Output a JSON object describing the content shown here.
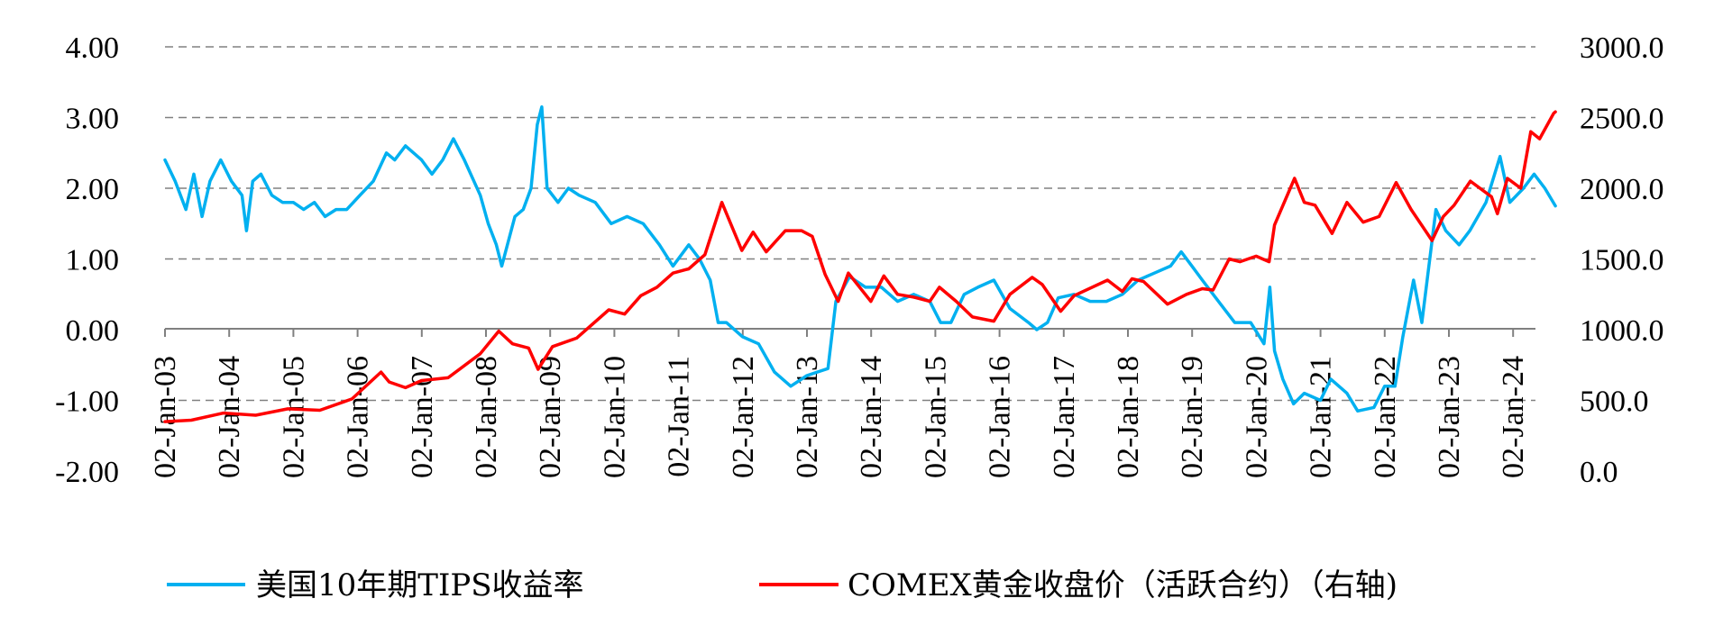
{
  "chart_data": {
    "type": "line",
    "grid": "dashed horizontal",
    "legend_position": "bottom",
    "x_tick_labels": [
      "02-Jan-03",
      "02-Jan-04",
      "02-Jan-05",
      "02-Jan-06",
      "02-Jan-07",
      "02-Jan-08",
      "02-Jan-09",
      "02-Jan-10",
      "02-Jan-11",
      "02-Jan-12",
      "02-Jan-13",
      "02-Jan-14",
      "02-Jan-15",
      "02-Jan-16",
      "02-Jan-17",
      "02-Jan-18",
      "02-Jan-19",
      "02-Jan-20",
      "02-Jan-21",
      "02-Jan-22",
      "02-Jan-23",
      "02-Jan-24"
    ],
    "x_range": [
      "2003-01-02",
      "2024-08-30"
    ],
    "y_left": {
      "ylim": [
        -2.0,
        4.0
      ],
      "tick_labels": [
        "4.00",
        "3.00",
        "2.00",
        "1.00",
        "0.00",
        "-1.00",
        "-2.00"
      ]
    },
    "y_right": {
      "ylim": [
        0,
        3000
      ],
      "tick_labels": [
        "3000.0",
        "2500.0",
        "2000.0",
        "1500.0",
        "1000.0",
        "500.0",
        "0.0"
      ]
    },
    "series": [
      {
        "name": "美国10年期TIPS收益率",
        "axis": "left",
        "color": "#00B0F0",
        "points": [
          [
            "2003-01-02",
            2.4
          ],
          [
            "2003-03-01",
            2.1
          ],
          [
            "2003-05-01",
            1.7
          ],
          [
            "2003-06-15",
            2.2
          ],
          [
            "2003-08-01",
            1.6
          ],
          [
            "2003-09-15",
            2.1
          ],
          [
            "2003-11-15",
            2.4
          ],
          [
            "2004-01-15",
            2.1
          ],
          [
            "2004-03-15",
            1.9
          ],
          [
            "2004-04-10",
            1.4
          ],
          [
            "2004-05-15",
            2.1
          ],
          [
            "2004-07-01",
            2.2
          ],
          [
            "2004-09-01",
            1.9
          ],
          [
            "2004-11-01",
            1.8
          ],
          [
            "2005-01-01",
            1.8
          ],
          [
            "2005-03-01",
            1.7
          ],
          [
            "2005-05-01",
            1.8
          ],
          [
            "2005-07-01",
            1.6
          ],
          [
            "2005-09-01",
            1.7
          ],
          [
            "2005-11-01",
            1.7
          ],
          [
            "2006-01-15",
            1.9
          ],
          [
            "2006-04-01",
            2.1
          ],
          [
            "2006-06-15",
            2.5
          ],
          [
            "2006-08-01",
            2.4
          ],
          [
            "2006-10-01",
            2.6
          ],
          [
            "2007-01-01",
            2.4
          ],
          [
            "2007-03-01",
            2.2
          ],
          [
            "2007-05-01",
            2.4
          ],
          [
            "2007-07-01",
            2.7
          ],
          [
            "2007-09-01",
            2.4
          ],
          [
            "2007-12-01",
            1.9
          ],
          [
            "2008-01-15",
            1.5
          ],
          [
            "2008-03-01",
            1.2
          ],
          [
            "2008-04-01",
            0.9
          ],
          [
            "2008-06-15",
            1.6
          ],
          [
            "2008-08-01",
            1.7
          ],
          [
            "2008-09-15",
            2.0
          ],
          [
            "2008-10-20",
            2.9
          ],
          [
            "2008-11-15",
            3.15
          ],
          [
            "2008-12-15",
            2.0
          ],
          [
            "2009-02-15",
            1.8
          ],
          [
            "2009-04-15",
            2.0
          ],
          [
            "2009-06-15",
            1.9
          ],
          [
            "2009-09-15",
            1.8
          ],
          [
            "2009-12-15",
            1.5
          ],
          [
            "2010-03-15",
            1.6
          ],
          [
            "2010-06-15",
            1.5
          ],
          [
            "2010-09-15",
            1.2
          ],
          [
            "2010-12-01",
            0.9
          ],
          [
            "2011-03-01",
            1.2
          ],
          [
            "2011-05-01",
            1.0
          ],
          [
            "2011-07-01",
            0.7
          ],
          [
            "2011-08-15",
            0.1
          ],
          [
            "2011-10-01",
            0.1
          ],
          [
            "2012-01-01",
            -0.1
          ],
          [
            "2012-04-01",
            -0.2
          ],
          [
            "2012-07-01",
            -0.6
          ],
          [
            "2012-10-01",
            -0.8
          ],
          [
            "2013-01-01",
            -0.65
          ],
          [
            "2013-03-01",
            -0.6
          ],
          [
            "2013-05-01",
            -0.55
          ],
          [
            "2013-06-15",
            0.4
          ],
          [
            "2013-09-01",
            0.75
          ],
          [
            "2013-12-01",
            0.6
          ],
          [
            "2014-03-01",
            0.6
          ],
          [
            "2014-06-01",
            0.4
          ],
          [
            "2014-09-01",
            0.5
          ],
          [
            "2014-12-01",
            0.4
          ],
          [
            "2015-02-01",
            0.1
          ],
          [
            "2015-04-01",
            0.1
          ],
          [
            "2015-06-15",
            0.5
          ],
          [
            "2015-09-01",
            0.6
          ],
          [
            "2015-12-01",
            0.7
          ],
          [
            "2016-03-01",
            0.3
          ],
          [
            "2016-06-15",
            0.1
          ],
          [
            "2016-08-01",
            0.0
          ],
          [
            "2016-10-01",
            0.1
          ],
          [
            "2016-12-01",
            0.45
          ],
          [
            "2017-03-01",
            0.5
          ],
          [
            "2017-06-01",
            0.4
          ],
          [
            "2017-09-01",
            0.4
          ],
          [
            "2017-12-01",
            0.5
          ],
          [
            "2018-03-01",
            0.7
          ],
          [
            "2018-06-01",
            0.8
          ],
          [
            "2018-09-01",
            0.9
          ],
          [
            "2018-11-01",
            1.1
          ],
          [
            "2019-01-01",
            0.9
          ],
          [
            "2019-03-01",
            0.7
          ],
          [
            "2019-06-01",
            0.4
          ],
          [
            "2019-09-01",
            0.1
          ],
          [
            "2019-12-01",
            0.1
          ],
          [
            "2020-02-15",
            -0.2
          ],
          [
            "2020-03-19",
            0.6
          ],
          [
            "2020-04-15",
            -0.3
          ],
          [
            "2020-06-01",
            -0.7
          ],
          [
            "2020-08-01",
            -1.05
          ],
          [
            "2020-10-01",
            -0.9
          ],
          [
            "2021-01-01",
            -1.0
          ],
          [
            "2021-03-01",
            -0.7
          ],
          [
            "2021-06-01",
            -0.9
          ],
          [
            "2021-08-01",
            -1.15
          ],
          [
            "2021-11-01",
            -1.1
          ],
          [
            "2022-01-01",
            -0.8
          ],
          [
            "2022-03-01",
            -0.8
          ],
          [
            "2022-04-15",
            -0.1
          ],
          [
            "2022-06-15",
            0.7
          ],
          [
            "2022-08-01",
            0.1
          ],
          [
            "2022-10-20",
            1.7
          ],
          [
            "2022-12-15",
            1.4
          ],
          [
            "2023-03-01",
            1.2
          ],
          [
            "2023-05-01",
            1.4
          ],
          [
            "2023-08-01",
            1.8
          ],
          [
            "2023-10-20",
            2.45
          ],
          [
            "2023-12-15",
            1.8
          ],
          [
            "2024-03-01",
            2.0
          ],
          [
            "2024-05-01",
            2.2
          ],
          [
            "2024-07-01",
            2.0
          ],
          [
            "2024-08-30",
            1.75
          ]
        ]
      },
      {
        "name": "COMEX黄金收盘价（活跃合约）（右轴)",
        "axis": "right",
        "color": "#FF0000",
        "points": [
          [
            "2003-01-02",
            350
          ],
          [
            "2003-06-01",
            360
          ],
          [
            "2003-12-01",
            410
          ],
          [
            "2004-06-01",
            395
          ],
          [
            "2004-12-01",
            440
          ],
          [
            "2005-06-01",
            430
          ],
          [
            "2005-12-01",
            510
          ],
          [
            "2006-05-15",
            700
          ],
          [
            "2006-07-01",
            630
          ],
          [
            "2006-10-01",
            590
          ],
          [
            "2007-01-01",
            640
          ],
          [
            "2007-06-01",
            660
          ],
          [
            "2007-12-01",
            830
          ],
          [
            "2008-03-15",
            990
          ],
          [
            "2008-06-01",
            900
          ],
          [
            "2008-09-01",
            870
          ],
          [
            "2008-10-25",
            720
          ],
          [
            "2009-01-15",
            880
          ],
          [
            "2009-06-01",
            940
          ],
          [
            "2009-12-01",
            1140
          ],
          [
            "2010-03-01",
            1110
          ],
          [
            "2010-06-01",
            1240
          ],
          [
            "2010-09-01",
            1300
          ],
          [
            "2010-12-01",
            1400
          ],
          [
            "2011-03-01",
            1430
          ],
          [
            "2011-06-01",
            1530
          ],
          [
            "2011-09-05",
            1900
          ],
          [
            "2011-12-28",
            1560
          ],
          [
            "2012-03-01",
            1690
          ],
          [
            "2012-05-15",
            1550
          ],
          [
            "2012-09-01",
            1700
          ],
          [
            "2012-12-01",
            1700
          ],
          [
            "2013-02-01",
            1660
          ],
          [
            "2013-04-15",
            1390
          ],
          [
            "2013-06-28",
            1200
          ],
          [
            "2013-08-25",
            1400
          ],
          [
            "2013-12-31",
            1200
          ],
          [
            "2014-03-15",
            1380
          ],
          [
            "2014-06-01",
            1250
          ],
          [
            "2014-09-01",
            1230
          ],
          [
            "2014-12-01",
            1200
          ],
          [
            "2015-01-25",
            1300
          ],
          [
            "2015-05-01",
            1200
          ],
          [
            "2015-08-01",
            1090
          ],
          [
            "2015-12-01",
            1060
          ],
          [
            "2016-03-01",
            1250
          ],
          [
            "2016-07-06",
            1370
          ],
          [
            "2016-09-01",
            1320
          ],
          [
            "2016-12-15",
            1130
          ],
          [
            "2017-03-01",
            1240
          ],
          [
            "2017-09-08",
            1350
          ],
          [
            "2017-12-01",
            1270
          ],
          [
            "2018-01-25",
            1360
          ],
          [
            "2018-04-01",
            1340
          ],
          [
            "2018-08-15",
            1180
          ],
          [
            "2018-12-01",
            1250
          ],
          [
            "2019-03-01",
            1290
          ],
          [
            "2019-05-01",
            1280
          ],
          [
            "2019-08-01",
            1500
          ],
          [
            "2019-10-01",
            1480
          ],
          [
            "2020-01-01",
            1520
          ],
          [
            "2020-03-15",
            1480
          ],
          [
            "2020-04-15",
            1740
          ],
          [
            "2020-08-07",
            2070
          ],
          [
            "2020-10-01",
            1900
          ],
          [
            "2020-12-01",
            1880
          ],
          [
            "2021-03-08",
            1680
          ],
          [
            "2021-06-01",
            1900
          ],
          [
            "2021-09-01",
            1760
          ],
          [
            "2021-12-01",
            1800
          ],
          [
            "2022-03-08",
            2040
          ],
          [
            "2022-06-01",
            1850
          ],
          [
            "2022-09-28",
            1630
          ],
          [
            "2022-12-01",
            1800
          ],
          [
            "2023-02-01",
            1880
          ],
          [
            "2023-05-04",
            2050
          ],
          [
            "2023-09-01",
            1940
          ],
          [
            "2023-10-05",
            1820
          ],
          [
            "2023-12-01",
            2070
          ],
          [
            "2024-02-15",
            2000
          ],
          [
            "2024-04-12",
            2400
          ],
          [
            "2024-06-01",
            2350
          ],
          [
            "2024-08-20",
            2530
          ],
          [
            "2024-08-30",
            2540
          ]
        ]
      }
    ]
  }
}
